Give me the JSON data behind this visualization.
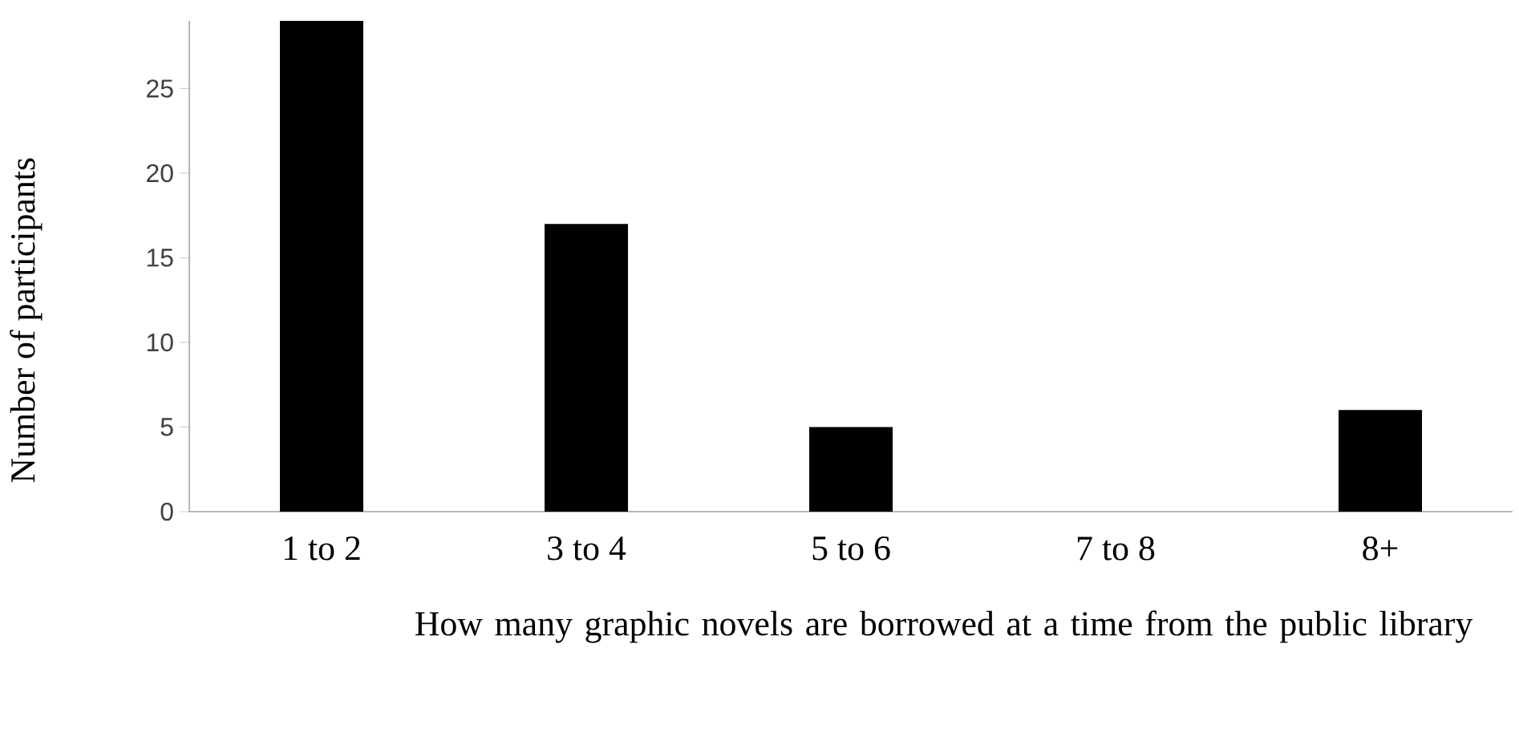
{
  "chart_data": {
    "type": "bar",
    "xlabel": "How many graphic novels are borrowed at a time from the public library",
    "ylabel": "Number of participants",
    "categories": [
      "1 to 2",
      "3 to 4",
      "5 to 6",
      "7 to 8",
      "8+"
    ],
    "values": [
      29,
      17,
      5,
      0,
      6
    ],
    "color": "#000000",
    "ylim": [
      0,
      29
    ],
    "yticks": [
      0,
      5,
      10,
      15,
      20,
      25
    ],
    "grid": false
  }
}
